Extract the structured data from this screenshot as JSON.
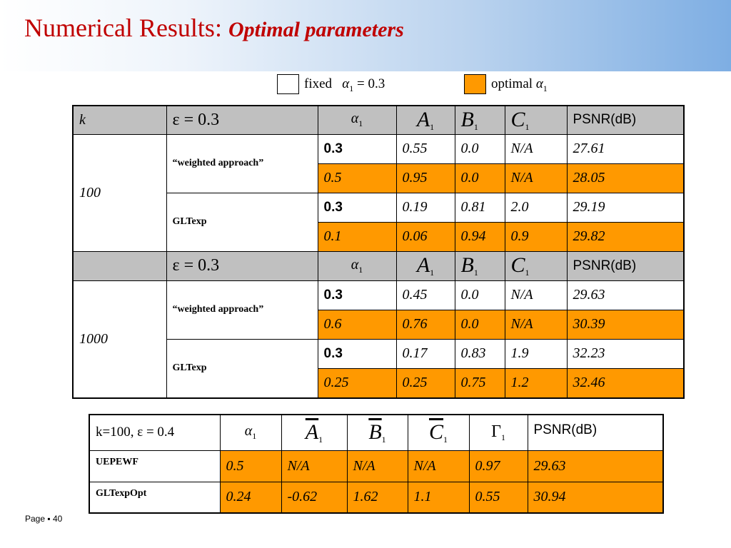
{
  "slide": {
    "title_main": "Numerical Results:",
    "title_sub": "Optimal parameters",
    "colors": {
      "accent_orange": "#ff9900",
      "header_gray": "#c0c0c0",
      "title_red": "#c00000"
    }
  },
  "legend": {
    "fixed_label": "fixed",
    "fixed_eq": "α1 = 0.3",
    "fixed_alpha": "α",
    "fixed_alpha_sub": "1",
    "fixed_value": "= 0.3",
    "optimal_label": "optimal",
    "optimal_alpha": "α",
    "optimal_alpha_sub": "1"
  },
  "table1": {
    "header": {
      "k": "k",
      "eps": "ε = 0.3",
      "alpha": "α",
      "alpha_sub": "1",
      "A": "A",
      "A_sub": "1",
      "B": "B",
      "B_sub": "1",
      "C": "C",
      "C_sub": "1",
      "psnr": "PSNR(dB)"
    },
    "groups": [
      {
        "k": "100",
        "methods": [
          {
            "name": "“weighted approach”",
            "rows": [
              [
                "0.3",
                "0.55",
                "0.0",
                "N/A",
                "27.61"
              ],
              [
                "0.5",
                "0.95",
                "0.0",
                "N/A",
                "28.05"
              ]
            ]
          },
          {
            "name": "GLTexp",
            "rows": [
              [
                "0.3",
                "0.19",
                "0.81",
                "2.0",
                "29.19"
              ],
              [
                "0.1",
                "0.06",
                "0.94",
                "0.9",
                "29.82"
              ]
            ]
          }
        ]
      },
      {
        "k": "1000",
        "methods": [
          {
            "name": "“weighted approach”",
            "rows": [
              [
                "0.3",
                "0.45",
                "0.0",
                "N/A",
                "29.63"
              ],
              [
                "0.6",
                "0.76",
                "0.0",
                "N/A",
                "30.39"
              ]
            ]
          },
          {
            "name": "GLTexp",
            "rows": [
              [
                "0.3",
                "0.17",
                "0.83",
                "1.9",
                "32.23"
              ],
              [
                "0.25",
                "0.25",
                "0.75",
                "1.2",
                "32.46"
              ]
            ]
          }
        ]
      }
    ]
  },
  "table2": {
    "header": {
      "label": "k=100, ε = 0.4",
      "alpha": "α",
      "alpha_sub": "1",
      "A": "A",
      "A_sub": "1",
      "B": "B",
      "B_sub": "1",
      "C": "C",
      "C_sub": "1",
      "gamma": "Γ",
      "gamma_sub": "1",
      "psnr": "PSNR(dB)"
    },
    "rows": [
      {
        "name": "UEPEWF",
        "values": [
          "0.5",
          "N/A",
          "N/A",
          "N/A",
          "0.97",
          "29.63"
        ]
      },
      {
        "name": "GLTexpOpt",
        "values": [
          "0.24",
          "-0.62",
          "1.62",
          "1.1",
          "0.55",
          "30.94"
        ]
      }
    ]
  },
  "footer": {
    "page_label": "Page ▪ 40"
  }
}
